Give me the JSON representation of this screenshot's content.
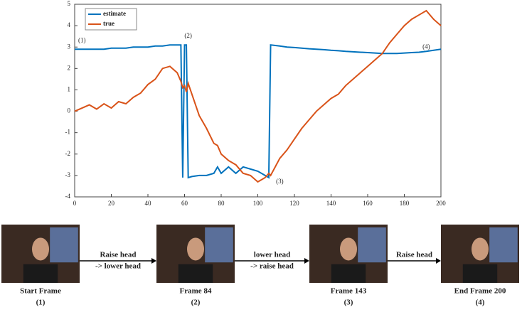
{
  "chart_data": {
    "type": "line",
    "x": [
      0,
      4,
      8,
      12,
      16,
      20,
      24,
      28,
      32,
      36,
      40,
      44,
      48,
      52,
      56,
      58,
      59,
      60,
      61,
      62,
      64,
      68,
      72,
      76,
      78,
      80,
      84,
      88,
      92,
      96,
      100,
      104,
      106,
      107,
      112,
      116,
      120,
      124,
      128,
      132,
      136,
      140,
      144,
      148,
      152,
      156,
      160,
      164,
      168,
      172,
      176,
      180,
      184,
      188,
      192,
      196,
      200
    ],
    "series": [
      {
        "name": "estimate",
        "color": "#0072bd",
        "values": [
          2.9,
          2.9,
          2.9,
          2.9,
          2.9,
          2.95,
          2.95,
          2.95,
          3.0,
          3.0,
          3.0,
          3.05,
          3.05,
          3.1,
          3.1,
          3.1,
          -3.1,
          3.1,
          3.1,
          -3.1,
          -3.05,
          -3.0,
          -3.0,
          -2.9,
          -2.6,
          -2.9,
          -2.6,
          -2.9,
          -2.6,
          -2.7,
          -2.8,
          -3.0,
          -3.1,
          3.1,
          3.05,
          3.0,
          2.98,
          2.95,
          2.92,
          2.9,
          2.88,
          2.85,
          2.83,
          2.8,
          2.78,
          2.76,
          2.74,
          2.72,
          2.7,
          2.7,
          2.7,
          2.72,
          2.74,
          2.76,
          2.8,
          2.85,
          2.9
        ]
      },
      {
        "name": "true",
        "color": "#d95319",
        "values": [
          0.0,
          0.15,
          0.3,
          0.1,
          0.35,
          0.15,
          0.45,
          0.35,
          0.65,
          0.85,
          1.25,
          1.5,
          2.0,
          2.1,
          1.8,
          1.4,
          1.1,
          1.2,
          0.9,
          1.3,
          0.8,
          -0.2,
          -0.8,
          -1.5,
          -1.6,
          -2.0,
          -2.3,
          -2.5,
          -2.9,
          -3.0,
          -3.3,
          -3.1,
          -2.9,
          -3.0,
          -2.2,
          -1.8,
          -1.3,
          -0.8,
          -0.4,
          0.0,
          0.3,
          0.6,
          0.8,
          1.2,
          1.5,
          1.8,
          2.1,
          2.4,
          2.7,
          3.2,
          3.6,
          4.0,
          4.3,
          4.5,
          4.7,
          4.3,
          4.0
        ]
      }
    ],
    "xlim": [
      0,
      200
    ],
    "xticks": [
      0,
      20,
      40,
      60,
      80,
      100,
      120,
      140,
      160,
      180,
      200
    ],
    "ylim": [
      -4,
      5
    ],
    "yticks": [
      -4,
      -3,
      -2,
      -1,
      0,
      1,
      2,
      3,
      4,
      5
    ],
    "annotations": [
      "(1)",
      "(2)",
      "(3)",
      "(4)"
    ],
    "legend": "upper left"
  },
  "frames": [
    {
      "label": "Start Frame",
      "index": "(1)"
    },
    {
      "label": "Frame 84",
      "index": "(2)"
    },
    {
      "label": "Frame 143",
      "index": "(3)"
    },
    {
      "label": "End Frame 200",
      "index": "(4)"
    }
  ],
  "transitions": [
    {
      "lines": [
        "Raise head",
        "-> lower head"
      ]
    },
    {
      "lines": [
        "lower head",
        "-> raise head"
      ]
    },
    {
      "lines": [
        "Raise head"
      ]
    }
  ]
}
